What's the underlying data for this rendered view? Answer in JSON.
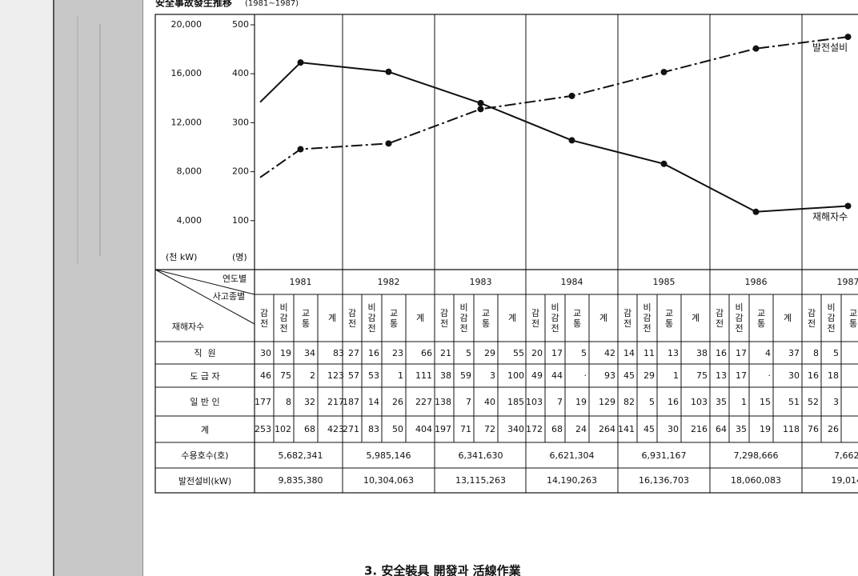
{
  "title": "安全事故發生推移",
  "subtitle": "(1981∼1987)",
  "chart_data": {
    "type": "line",
    "categories": [
      null,
      "1981",
      "1982",
      "1983",
      "1984",
      "1985",
      "1986",
      "1987"
    ],
    "y_label": "(천 kW)",
    "y2_label": "(명)",
    "ylim": [
      0,
      20000
    ],
    "yticks": [
      {
        "value": 4000,
        "label": "4,000"
      },
      {
        "value": 8000,
        "label": "8,000"
      },
      {
        "value": 12000,
        "label": "12,000"
      },
      {
        "value": 16000,
        "label": "16,000"
      },
      {
        "value": 20000,
        "label": "20,000"
      }
    ],
    "y2lim": [
      0,
      500
    ],
    "y2ticks": [
      100,
      200,
      300,
      400,
      500
    ],
    "series": [
      {
        "name": "발전설비",
        "color": "#111111",
        "style": "dash-dot",
        "values": [
          7527,
          9835,
          10304,
          13115,
          14190,
          16137,
          18060,
          19014
        ]
      },
      {
        "name": "재해자수",
        "color": "#111111",
        "style": "solid",
        "axis": "y2",
        "values": [
          342,
          423,
          404,
          340,
          264,
          216,
          118,
          130
        ]
      }
    ]
  },
  "table": {
    "corner": {
      "top": "연도별",
      "middle": "사고종별",
      "bottom": "재해자수"
    },
    "subheaders": [
      "감전",
      "비감전",
      "교통",
      "계"
    ],
    "rows": [
      {
        "label": "직  원",
        "cells": [
          30,
          19,
          34,
          83,
          27,
          16,
          23,
          66,
          21,
          5,
          29,
          55,
          20,
          17,
          5,
          42,
          14,
          11,
          13,
          38,
          16,
          17,
          4,
          37,
          8,
          5
        ]
      },
      {
        "label": "도 급 자",
        "cells": [
          46,
          75,
          2,
          123,
          57,
          53,
          1,
          111,
          38,
          59,
          3,
          100,
          49,
          44,
          "·",
          93,
          45,
          29,
          1,
          75,
          13,
          17,
          "·",
          30,
          16,
          18
        ]
      },
      {
        "label": "일 반 인",
        "cells": [
          177,
          8,
          32,
          217,
          187,
          14,
          26,
          227,
          138,
          7,
          40,
          185,
          103,
          7,
          19,
          129,
          82,
          5,
          16,
          103,
          35,
          1,
          15,
          51,
          52,
          3
        ]
      },
      {
        "label": "계",
        "cells": [
          253,
          102,
          68,
          423,
          271,
          83,
          50,
          404,
          197,
          71,
          72,
          340,
          172,
          68,
          24,
          264,
          141,
          45,
          30,
          216,
          64,
          35,
          19,
          118,
          76,
          26
        ]
      }
    ],
    "totals": [
      {
        "label": "수용호수(호)",
        "cells": [
          "5,682,341",
          "5,985,146",
          "6,341,630",
          "6,621,304",
          "6,931,167",
          "7,298,666",
          "7,662,"
        ]
      },
      {
        "label": "발전설비(kW)",
        "cells": [
          "9,835,380",
          "10,304,063",
          "13,115,263",
          "14,190,263",
          "16,136,703",
          "18,060,083",
          "19,014,"
        ]
      }
    ]
  },
  "next_heading": "3. 安全裝具 開發과 活線作業"
}
